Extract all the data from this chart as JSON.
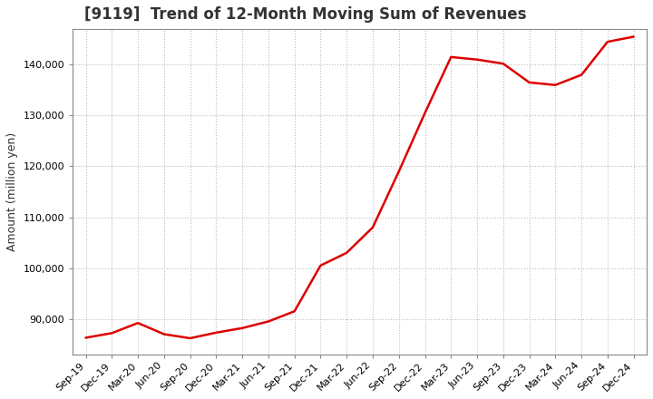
{
  "title": "[9119]  Trend of 12-Month Moving Sum of Revenues",
  "ylabel": "Amount (million yen)",
  "line_color": "#dd0000",
  "background_color": "#ffffff",
  "plot_bg_color": "#ffffff",
  "grid_color": "#bbbbbb",
  "x_labels": [
    "Sep-19",
    "Dec-19",
    "Mar-20",
    "Jun-20",
    "Sep-20",
    "Dec-20",
    "Mar-21",
    "Jun-21",
    "Sep-21",
    "Dec-21",
    "Mar-22",
    "Jun-22",
    "Sep-22",
    "Dec-22",
    "Mar-23",
    "Jun-23",
    "Sep-23",
    "Dec-23",
    "Mar-24",
    "Jun-24",
    "Sep-24",
    "Dec-24"
  ],
  "values": [
    86300,
    87200,
    89200,
    87000,
    86200,
    87300,
    88200,
    89500,
    91500,
    100500,
    103000,
    108000,
    119000,
    130500,
    141500,
    141000,
    140200,
    136500,
    136000,
    138000,
    144500,
    145500
  ],
  "ylim": [
    83000,
    147000
  ],
  "yticks": [
    90000,
    100000,
    110000,
    120000,
    130000,
    140000
  ],
  "title_fontsize": 12,
  "title_color": "#333333",
  "label_fontsize": 9,
  "tick_fontsize": 8,
  "line_width": 1.8
}
